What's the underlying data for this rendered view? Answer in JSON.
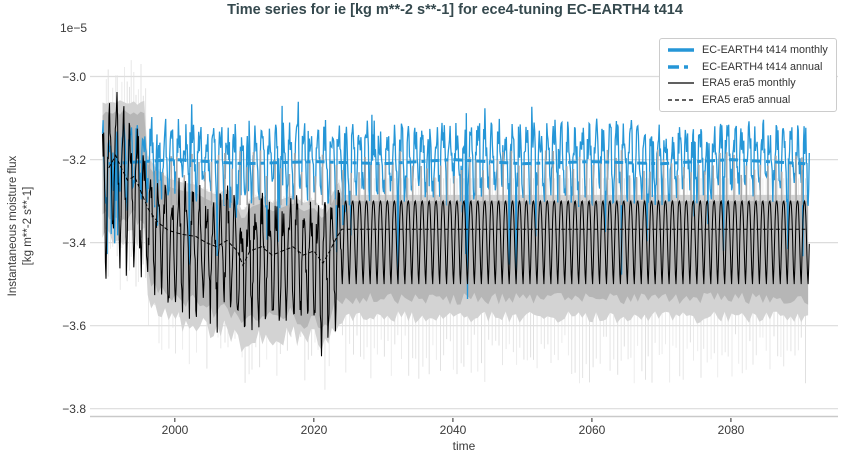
{
  "chart_data": {
    "type": "line",
    "title": "Time series for ie [kg m**-2 s**-1] for ece4-tuning EC-EARTH4 t414",
    "offset_label": "1e−5",
    "xlabel": "time",
    "ylabel_lines": [
      "Instantaneous moisture flux",
      "[kg m**-2 s**-1]"
    ],
    "xlim": [
      1987.8,
      2095.4
    ],
    "ylim": [
      -3.82,
      -2.9
    ],
    "xticks": [
      2000,
      2020,
      2040,
      2060,
      2080
    ],
    "yticks": [
      -3.0,
      -3.2,
      -3.4,
      -3.6,
      -3.8
    ],
    "ytick_labels": [
      "−3.0",
      "−3.2",
      "−3.4",
      "−3.6",
      "−3.8"
    ],
    "grid": "horizontal-only",
    "legend": {
      "position": "upper-right",
      "entries": [
        {
          "label": "EC-EARTH4 t414 monthly",
          "color": "#2596d7",
          "width": 3.5,
          "dash": ""
        },
        {
          "label": "EC-EARTH4 t414 annual",
          "color": "#2596d7",
          "width": 3.5,
          "dash": "11 5 4 20"
        },
        {
          "label": "ERA5 era5 monthly",
          "color": "#000000",
          "width": 1.2,
          "dash": ""
        },
        {
          "label": "ERA5 era5 annual",
          "color": "#000000",
          "width": 1.2,
          "dash": "4 3"
        }
      ]
    },
    "colors": {
      "ec_earth4": "#2596d7",
      "era5": "#000000",
      "range_band": "#b6b6b6",
      "range_band_light": "#d3d3d3",
      "whisker": "#e0e0e0",
      "needle": "#a8a8a8",
      "grid": "#dcdcdc",
      "spine": "#c9c9c9",
      "tick_mark": "#4a4a4a",
      "text": "#3a3a3a",
      "title": "#35494e"
    },
    "generation": {
      "seed": 20,
      "start_year": 1989.6,
      "end_year": 2091.25,
      "era5_phaseA_end": 1995.5,
      "era5_regular_cycle_start": 2024,
      "era5_annual_constant_after_2024": -3.368,
      "era5_monthly_climatology": [
        0.068,
        0.06,
        0.032,
        -0.012,
        -0.062,
        -0.108,
        -0.132,
        -0.092,
        -0.035,
        0.02,
        0.055,
        0.066
      ],
      "ec_monthly_climatology": [
        0.055,
        0.065,
        0.045,
        0.012,
        -0.028,
        -0.058,
        -0.07,
        -0.055,
        -0.015,
        0.022,
        0.048,
        0.06
      ],
      "era5_amp_phaseA": 1.55,
      "era5_amp_phaseB": 1.25,
      "era5_noise_phaseA": 0.075,
      "era5_noise_phaseB": 0.05,
      "ec_noise": 0.042,
      "era5_annual_anchors": [
        [
          1990.5,
          -3.22
        ],
        [
          1991.5,
          -3.19
        ],
        [
          1992.3,
          -3.22
        ],
        [
          1993.2,
          -3.25
        ],
        [
          1994.2,
          -3.24
        ],
        [
          1995.2,
          -3.28
        ],
        [
          1996.2,
          -3.32
        ],
        [
          1997.5,
          -3.35
        ],
        [
          1999.0,
          -3.37
        ],
        [
          2001.0,
          -3.38
        ],
        [
          2003.0,
          -3.385
        ],
        [
          2004.5,
          -3.4
        ],
        [
          2006.0,
          -3.41
        ],
        [
          2007.5,
          -3.395
        ],
        [
          2009.0,
          -3.42
        ],
        [
          2009.8,
          -3.455
        ],
        [
          2010.8,
          -3.42
        ],
        [
          2012.5,
          -3.41
        ],
        [
          2014.0,
          -3.43
        ],
        [
          2015.5,
          -3.42
        ],
        [
          2017.0,
          -3.41
        ],
        [
          2018.5,
          -3.43
        ],
        [
          2020.0,
          -3.42
        ],
        [
          2021.3,
          -3.45
        ],
        [
          2022.3,
          -3.42
        ],
        [
          2023.2,
          -3.39
        ],
        [
          2024.0,
          -3.368
        ],
        [
          2090.7,
          -3.368
        ]
      ],
      "ec_annual_anchors": [
        [
          1990.5,
          -3.21
        ],
        [
          2000,
          -3.2
        ],
        [
          2010,
          -3.21
        ],
        [
          2020,
          -3.205
        ],
        [
          2030,
          -3.21
        ],
        [
          2040,
          -3.2
        ],
        [
          2050,
          -3.21
        ],
        [
          2060,
          -3.205
        ],
        [
          2070,
          -3.21
        ],
        [
          2080,
          -3.2
        ],
        [
          2090.7,
          -3.21
        ]
      ],
      "whisker_top_phaseA": -2.96,
      "whisker_bottom_phaseC": -3.62,
      "band_levels_phaseC": {
        "upper": -3.3,
        "lower": -3.52,
        "light_upper": -3.285,
        "light_lower": -3.565
      }
    }
  }
}
